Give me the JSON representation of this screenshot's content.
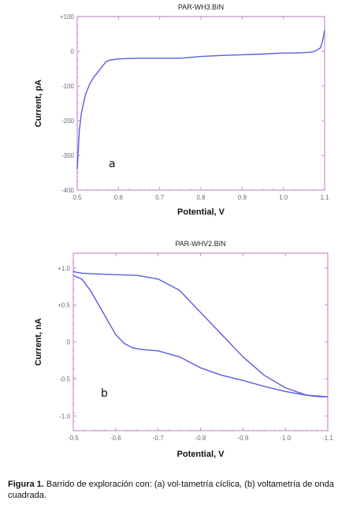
{
  "chart_data": [
    {
      "type": "line",
      "title": "PAR-WH3.BIN",
      "xlabel": "Potential, V",
      "ylabel": "Current, pA",
      "panel_label": "a",
      "xlim": [
        0.5,
        1.1
      ],
      "ylim": [
        -400,
        100
      ],
      "x_ticks": [
        "0.5",
        "0.6",
        "0.7",
        "0.8",
        "0.9",
        "1.0",
        "1.1"
      ],
      "y_ticks": [
        "+100",
        "0",
        "-100",
        "-200",
        "-300",
        "-400"
      ],
      "series": [
        {
          "x": [
            0.5,
            0.502,
            0.505,
            0.51,
            0.515,
            0.52,
            0.53,
            0.54,
            0.55,
            0.56,
            0.57,
            0.58,
            0.6,
            0.65,
            0.7,
            0.75,
            0.8,
            0.85,
            0.9,
            0.95,
            1.0,
            1.03,
            1.05,
            1.07,
            1.08,
            1.09,
            1.095,
            1.1
          ],
          "y": [
            -340,
            -300,
            -230,
            -180,
            -150,
            -125,
            -95,
            -75,
            -60,
            -45,
            -30,
            -25,
            -22,
            -20,
            -20,
            -20,
            -15,
            -12,
            -10,
            -8,
            -5,
            -5,
            -4,
            -2,
            2,
            10,
            30,
            60
          ]
        }
      ]
    },
    {
      "type": "line",
      "title": "PAR-WHV2.BIN",
      "xlabel": "Potential, V",
      "ylabel": "Current, nA",
      "panel_label": "b",
      "xlim": [
        -0.5,
        -1.1
      ],
      "ylim": [
        -1.2,
        1.2
      ],
      "x_ticks": [
        "-0.5",
        "-0.6",
        "-0.7",
        "-0.8",
        "-0.9",
        "-1.0",
        "-1.1"
      ],
      "y_ticks": [
        "+1.0",
        "+0.5",
        "0",
        "-0.5",
        "-1.0"
      ],
      "series": [
        {
          "x": [
            -0.5,
            -0.52,
            -0.55,
            -0.6,
            -0.65,
            -0.7,
            -0.75,
            -0.8,
            -0.85,
            -0.9,
            -0.95,
            -1.0,
            -1.05,
            -1.08,
            -1.1
          ],
          "y": [
            0.95,
            0.93,
            0.92,
            0.91,
            0.9,
            0.85,
            0.7,
            0.4,
            0.1,
            -0.2,
            -0.45,
            -0.62,
            -0.72,
            -0.74,
            -0.74
          ]
        },
        {
          "x": [
            -0.5,
            -0.52,
            -0.54,
            -0.56,
            -0.58,
            -0.6,
            -0.62,
            -0.64,
            -0.66,
            -0.7,
            -0.75,
            -0.8,
            -0.85,
            -0.9,
            -0.95,
            -1.0,
            -1.05,
            -1.1
          ],
          "y": [
            0.9,
            0.85,
            0.7,
            0.5,
            0.3,
            0.1,
            -0.02,
            -0.08,
            -0.1,
            -0.12,
            -0.2,
            -0.35,
            -0.45,
            -0.52,
            -0.6,
            -0.67,
            -0.72,
            -0.74
          ]
        }
      ]
    }
  ],
  "caption": {
    "label": "Figura 1.",
    "text": "Barrido de exploración con: (a) vol-tametría cíclica, (b) voltametría de onda cuadrada."
  },
  "colors": {
    "frame": "#c890c8",
    "curve": "#5a5ce0"
  }
}
